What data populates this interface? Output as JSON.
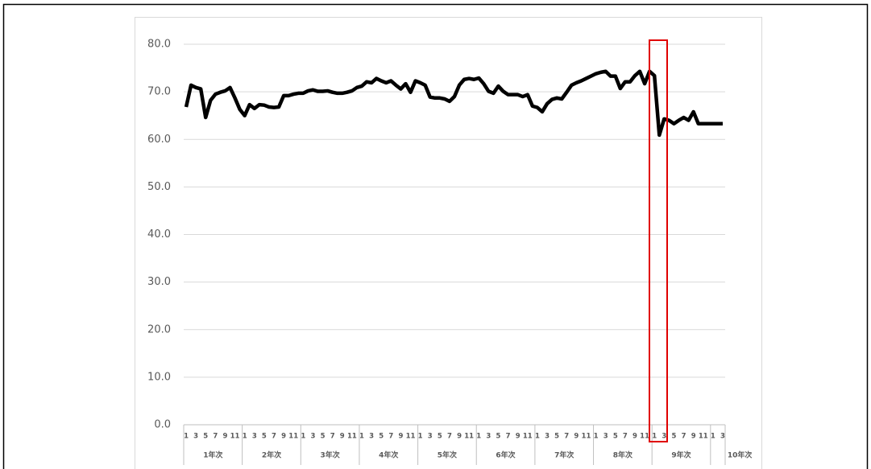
{
  "chart_data": {
    "type": "line",
    "categories": [
      "1",
      null,
      "3",
      null,
      "5",
      null,
      "7",
      null,
      "9",
      null,
      "11",
      null,
      "1",
      null,
      "3",
      null,
      "5",
      null,
      "7",
      null,
      "9",
      null,
      "11",
      null,
      "1",
      null,
      "3",
      null,
      "5",
      null,
      "7",
      null,
      "9",
      null,
      "11",
      null,
      "1",
      null,
      "3",
      null,
      "5",
      null,
      "7",
      null,
      "9",
      null,
      "11",
      null,
      "1",
      null,
      "3",
      null,
      "5",
      null,
      "7",
      null,
      "9",
      null,
      "11",
      null,
      "1",
      null,
      "3",
      null,
      "5",
      null,
      "7",
      null,
      "9",
      null,
      "11",
      null,
      "1",
      null,
      "3",
      null,
      "5",
      null,
      "7",
      null,
      "9",
      null,
      "11",
      null,
      "1",
      null,
      "3",
      null,
      "5",
      null,
      "7",
      null,
      "9",
      null,
      "11",
      null,
      "1",
      null,
      "3",
      null,
      "5",
      null,
      "7",
      null,
      "9",
      null,
      "11",
      null,
      "1",
      null,
      "3"
    ],
    "groups": [
      "1年次",
      "2年次",
      "3年次",
      "4年次",
      "5年次",
      "6年次",
      "7年次",
      "8年次",
      "9年次",
      "10年次"
    ],
    "values": [
      66.8,
      71.4,
      70.9,
      70.6,
      64.6,
      68.2,
      69.5,
      69.9,
      70.2,
      70.9,
      68.7,
      66.3,
      65.0,
      67.3,
      66.5,
      67.3,
      67.2,
      66.8,
      66.7,
      66.8,
      69.2,
      69.2,
      69.5,
      69.7,
      69.7,
      70.2,
      70.4,
      70.1,
      70.1,
      70.2,
      69.9,
      69.7,
      69.7,
      69.9,
      70.2,
      70.9,
      71.2,
      72.1,
      71.9,
      72.8,
      72.3,
      71.9,
      72.3,
      71.4,
      70.6,
      71.7,
      69.9,
      72.3,
      71.9,
      71.4,
      68.9,
      68.7,
      68.7,
      68.5,
      68.0,
      69.0,
      71.4,
      72.6,
      72.8,
      72.6,
      72.9,
      71.7,
      70.1,
      69.7,
      71.2,
      70.1,
      69.4,
      69.4,
      69.4,
      69.0,
      69.4,
      67.0,
      66.7,
      65.8,
      67.5,
      68.4,
      68.7,
      68.5,
      69.9,
      71.4,
      71.9,
      72.3,
      72.8,
      73.3,
      73.8,
      74.1,
      74.3,
      73.3,
      73.3,
      70.7,
      72.1,
      72.1,
      73.4,
      74.3,
      71.7,
      74.3,
      73.4,
      60.9,
      64.3,
      64.0,
      63.3,
      64.0,
      64.6,
      64.0,
      65.8,
      63.3,
      63.3,
      63.3,
      63.3,
      63.3,
      63.3
    ],
    "color": "#000000",
    "ylim": [
      0,
      80
    ],
    "yticks": [
      {
        "value": 0,
        "label": "0.0"
      },
      {
        "value": 10,
        "label": "10.0"
      },
      {
        "value": 20,
        "label": "20.0"
      },
      {
        "value": 30,
        "label": "30.0"
      },
      {
        "value": 40,
        "label": "40.0"
      },
      {
        "value": 50,
        "label": "50.0"
      },
      {
        "value": 60,
        "label": "60.0"
      },
      {
        "value": 70,
        "label": "70.0"
      },
      {
        "value": 80,
        "label": "80.0"
      }
    ],
    "grid": true
  }
}
